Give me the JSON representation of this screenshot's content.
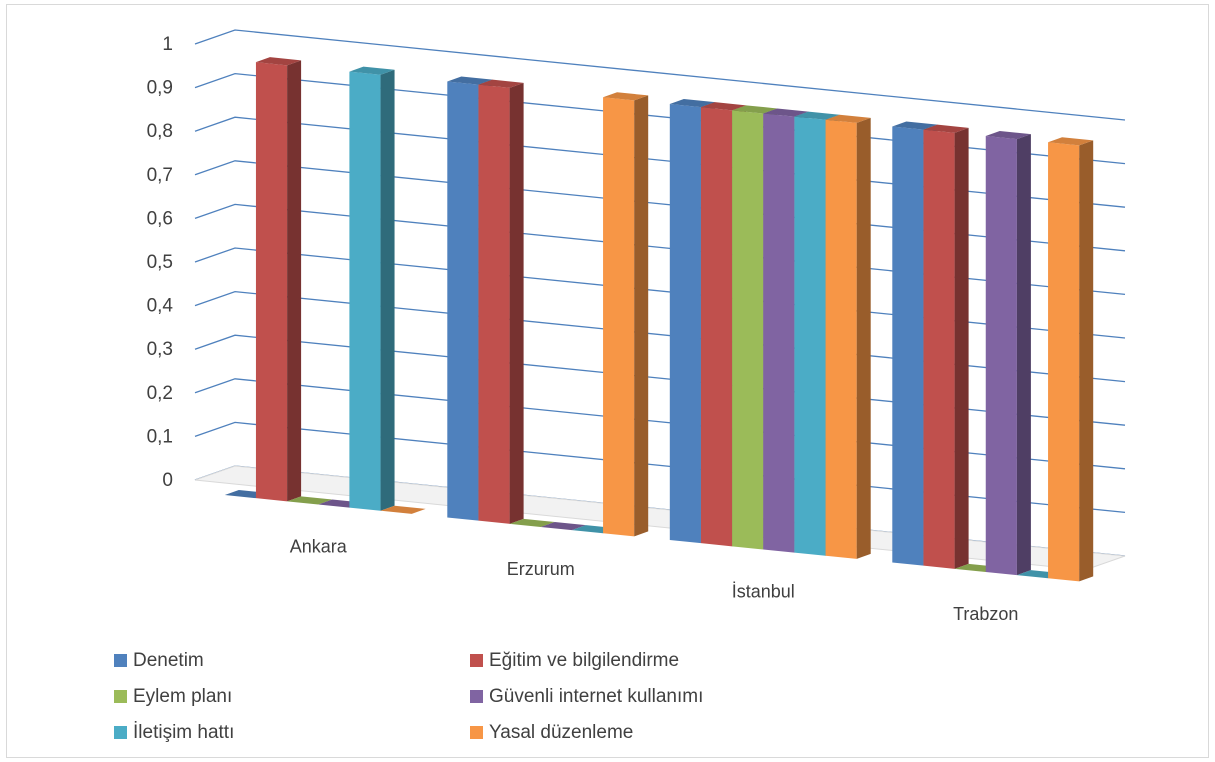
{
  "chart_data": {
    "type": "bar",
    "subtype": "3d-clustered-column",
    "categories": [
      "Ankara",
      "Erzurum",
      "İstanbul",
      "Trabzon"
    ],
    "series": [
      {
        "name": "Denetim",
        "color": "#4F81BD",
        "values": [
          0,
          1,
          1,
          1
        ]
      },
      {
        "name": "Eğitim ve bilgilendirme",
        "color": "#C0504D",
        "values": [
          1,
          1,
          1,
          1
        ]
      },
      {
        "name": "Eylem planı",
        "color": "#9BBB59",
        "values": [
          0,
          0,
          1,
          0
        ]
      },
      {
        "name": "Güvenli internet kullanımı",
        "color": "#8064A2",
        "values": [
          0,
          0,
          1,
          1
        ]
      },
      {
        "name": "İletişim hattı",
        "color": "#4BACC6",
        "values": [
          1,
          0,
          1,
          0
        ]
      },
      {
        "name": "Yasal düzenleme",
        "color": "#F79646",
        "values": [
          0,
          1,
          1,
          1
        ]
      }
    ],
    "y_ticks": [
      "0",
      "0,1",
      "0,2",
      "0,3",
      "0,4",
      "0,5",
      "0,6",
      "0,7",
      "0,8",
      "0,9",
      "1"
    ],
    "ylim": [
      0,
      1
    ],
    "title": "",
    "xlabel": "",
    "ylabel": "",
    "grid": true,
    "gridline_color": "#4F81BD",
    "legend_position": "bottom"
  }
}
